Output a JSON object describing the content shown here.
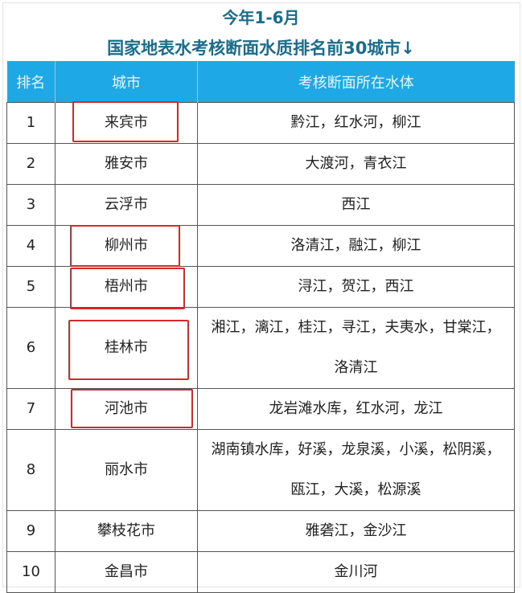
{
  "title_line1": "今年1-6月",
  "title_line2": "国家地表水考核断面水质排名前30城市↓",
  "table": {
    "headers": [
      "排名",
      "城市",
      "考核断面所在水体"
    ],
    "rows": [
      {
        "rank": "1",
        "city": "来宾市",
        "water": [
          "黔江，红水河，柳江"
        ],
        "highlighted": true
      },
      {
        "rank": "2",
        "city": "雅安市",
        "water": [
          "大渡河，青衣江"
        ],
        "highlighted": false
      },
      {
        "rank": "3",
        "city": "云浮市",
        "water": [
          "西江"
        ],
        "highlighted": false
      },
      {
        "rank": "4",
        "city": "柳州市",
        "water": [
          "洛清江，融江，柳江"
        ],
        "highlighted": true
      },
      {
        "rank": "5",
        "city": "梧州市",
        "water": [
          "浔江，贺江，西江"
        ],
        "highlighted": true
      },
      {
        "rank": "6",
        "city": "桂林市",
        "water": [
          "湘江，漓江，桂江，寻江，夫夷水，甘棠江，",
          "洛清江"
        ],
        "highlighted": true
      },
      {
        "rank": "7",
        "city": "河池市",
        "water": [
          "龙岩滩水库，红水河，龙江"
        ],
        "highlighted": true
      },
      {
        "rank": "8",
        "city": "丽水市",
        "water": [
          "湖南镇水库，好溪，龙泉溪，小溪，松阴溪，",
          "瓯江，大溪，松源溪"
        ],
        "highlighted": false
      },
      {
        "rank": "9",
        "city": "攀枝花市",
        "water": [
          "雅砻江，金沙江"
        ],
        "highlighted": false
      },
      {
        "rank": "10",
        "city": "金昌市",
        "water": [
          "金川河"
        ],
        "highlighted": false
      }
    ]
  },
  "colors": {
    "header_bg": "#1ea8e6",
    "title": "#1a6c8c",
    "highlight_box": "#d42a2a"
  }
}
